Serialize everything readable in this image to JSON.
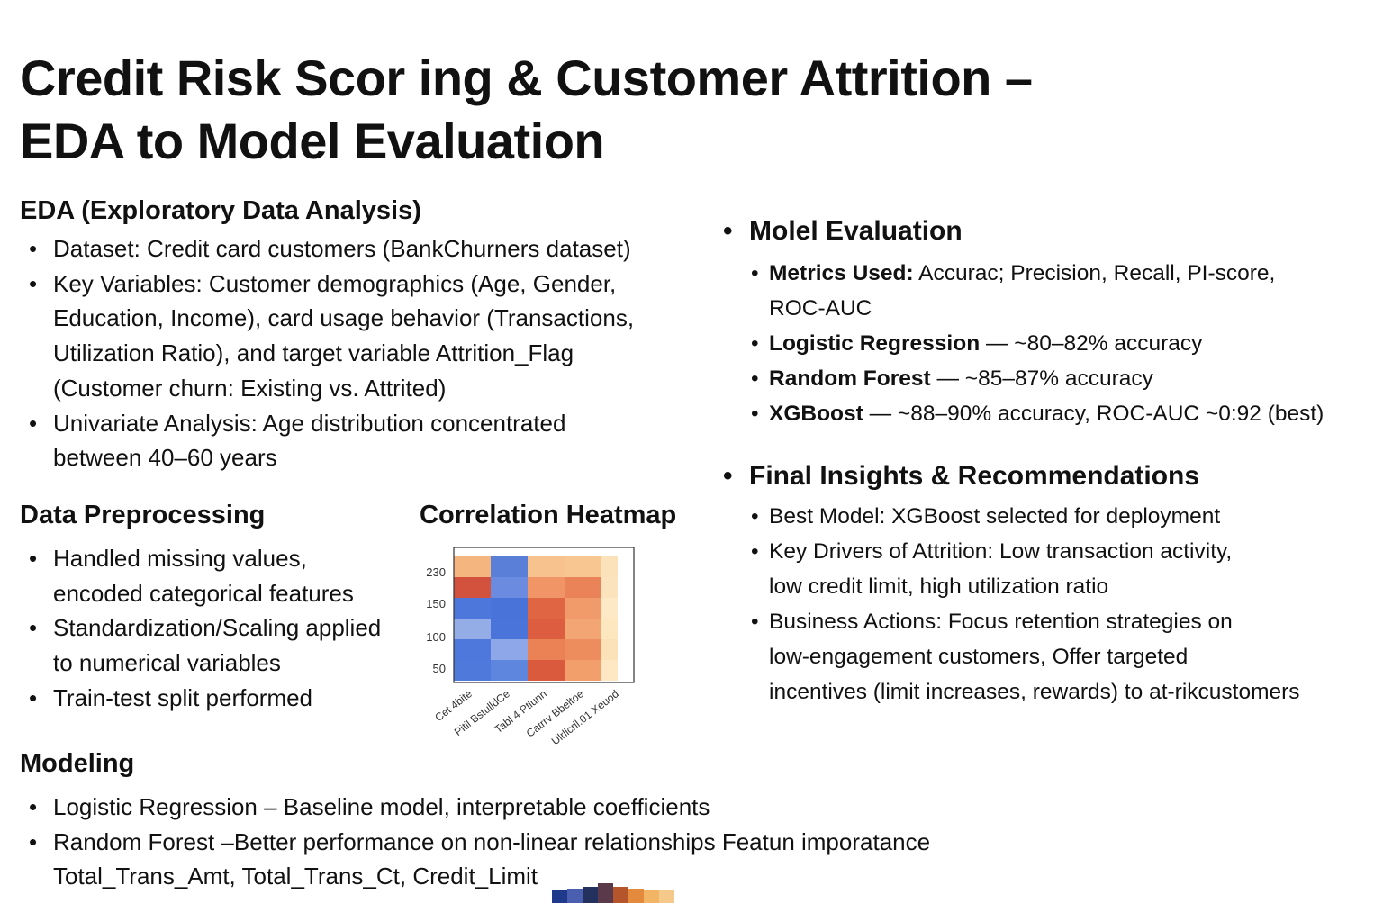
{
  "title": {
    "line1": "Credit Risk Scor ing & Customer Attrition –",
    "line2": "EDA to Model Evaluation"
  },
  "eda": {
    "heading": "EDA (Exploratory Data Analysis)",
    "items": [
      [
        "Dataset: Credit card customers (BankChurners dataset)"
      ],
      [
        "Key Variables: Customer demographics (Age, Gender,",
        "Education, Income), card usage behavior (Transactions,",
        "Utilization Ratio), and target variable Attrition_Flag",
        "(Customer churn: Existing vs. Attrited)"
      ],
      [
        "Univariate Analysis: Age distribution concentrated",
        "between 40–60 years"
      ]
    ]
  },
  "preprocessing": {
    "heading": "Data Preprocessing",
    "items": [
      [
        "Handled missing values,",
        "encoded categorical features"
      ],
      [
        "Standardization/Scaling applied",
        "to numerical variables"
      ],
      [
        "Train-test split performed"
      ]
    ]
  },
  "heatmap": {
    "heading": "Correlation Heatmap",
    "y_ticks": [
      "230",
      "150",
      "100",
      "50"
    ],
    "x_labels": [
      "Cet 4bite",
      "Pitil BstulldCe",
      "Tabl 4 Ptlunn",
      "Catrrv Bbeltoe",
      "Ulrlicril.01 Xeuod"
    ],
    "colors": [
      [
        "#f5b57f",
        "#5a7fd8",
        "#f8c28e",
        "#f8c791",
        "#fbe2bb"
      ],
      [
        "#d3523e",
        "#6a8be0",
        "#f19566",
        "#ea8458",
        "#fbe4bd"
      ],
      [
        "#4e77dc",
        "#4a73da",
        "#e06543",
        "#f19b6a",
        "#fde9c6"
      ],
      [
        "#95ade6",
        "#4b74db",
        "#dc5d3f",
        "#f3a574",
        "#fde7c1"
      ],
      [
        "#4e78dc",
        "#8ea7e9",
        "#ea8256",
        "#ed8c5d",
        "#fbe2b8"
      ],
      [
        "#5079dc",
        "#5f86df",
        "#d95a3d",
        "#f39f6c",
        "#fde8c3"
      ]
    ]
  },
  "modeling": {
    "heading": "Modeling",
    "items": [
      [
        "Logistic Regression – Baseline model, interpretable coefficients"
      ],
      [
        "Random Forest –Better performance on non-linear relationships Featun imporatance",
        "Total_Trans_Amt, Total_Trans_Ct, Credit_Limit"
      ]
    ],
    "glyph_colors": [
      "#1f3a8a",
      "#4b5fb0",
      "#24305e",
      "#5a3a4a",
      "#b4552c",
      "#e48a3c",
      "#f1b565",
      "#f4c98a"
    ]
  },
  "evaluation": {
    "heading": "Molel Evaluation",
    "items": [
      {
        "bold": "Metrics Used:",
        "text": " Accurac; Precision, Recall, PI-score,",
        "cont": "ROC-AUC"
      },
      {
        "bold": "Logistic Regression",
        "text": " — ~80–82% accuracy"
      },
      {
        "bold": "Random Forest",
        "text": " — ~85–87% accuracy"
      },
      {
        "bold": "XGBoost",
        "text": " — ~88–90% accuracy, ROC-AUC ~0:92 (best)"
      }
    ]
  },
  "insights": {
    "heading": "Final Insights & Recommendations",
    "items": [
      [
        "Best Model: XGBoost selected for deployment"
      ],
      [
        "Key Drivers of Attrition: Low transaction activity,",
        "low credit limit, high utilization ratio"
      ],
      [
        "Business Actions: Focus retention strategies on",
        "low-engagement customers, Offer targeted",
        "incentives (limit increases, rewards) to at-rikcustomers"
      ]
    ]
  }
}
